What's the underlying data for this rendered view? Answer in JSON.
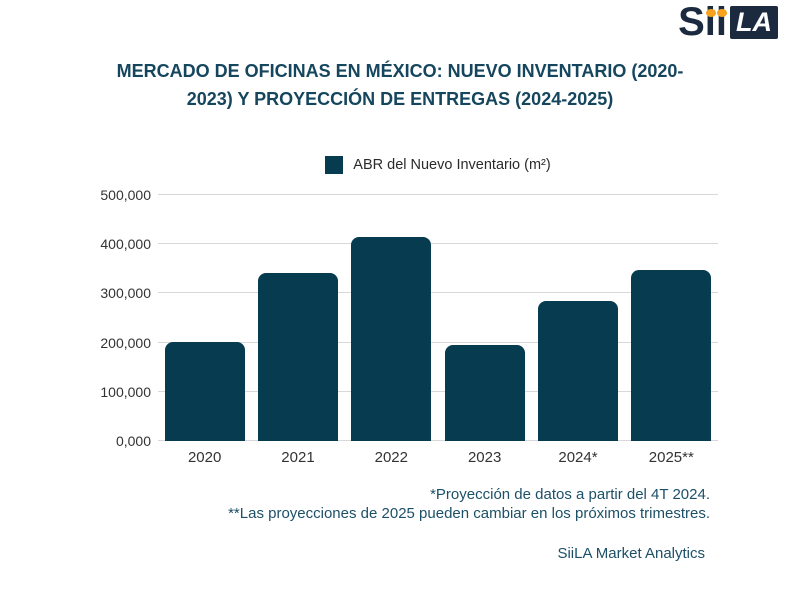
{
  "logo": {
    "brand": "SiiLA",
    "prefix": "Sii",
    "suffix": "LA",
    "navy": "#1B2A3E",
    "orange": "#F8A21D"
  },
  "title": {
    "line1": "MERCADO DE OFICINAS EN MÉXICO: NUEVO INVENTARIO (2020-",
    "line2": "2023) Y PROYECCIÓN DE ENTREGAS (2024-2025)"
  },
  "legend": {
    "label": "ABR del Nuevo Inventario (m²)"
  },
  "chart_data": {
    "type": "bar",
    "title": "MERCADO DE OFICINAS EN MÉXICO: NUEVO INVENTARIO (2020-2023) Y PROYECCIÓN DE ENTREGAS (2024-2025)",
    "categories": [
      "2020",
      "2021",
      "2022",
      "2023",
      "2024*",
      "2025**"
    ],
    "series": [
      {
        "name": "ABR del Nuevo Inventario (m²)",
        "values": [
          202000,
          342000,
          415000,
          196000,
          284000,
          347000
        ]
      }
    ],
    "xlabel": "",
    "ylabel": "",
    "ylim": [
      0,
      500000
    ],
    "y_ticks": [
      {
        "value": 0,
        "label": "0,000"
      },
      {
        "value": 100000,
        "label": "100,000"
      },
      {
        "value": 200000,
        "label": "200,000"
      },
      {
        "value": 300000,
        "label": "300,000"
      },
      {
        "value": 400000,
        "label": "400,000"
      },
      {
        "value": 500000,
        "label": "500,000"
      }
    ],
    "grid": "horizontal",
    "legend_position": "top-center",
    "bar_color": "#063B50"
  },
  "footnotes": {
    "line1": "*Proyección de datos a partir del 4T 2024.",
    "line2": "**Las proyecciones de 2025 pueden cambiar en los próximos trimestres."
  },
  "source": {
    "label": "SiiLA Market Analytics"
  },
  "colors": {
    "background": "#FFFFFF",
    "bar": "#063B50",
    "title_text": "#15465E",
    "footnote_text": "#1C5068",
    "axis_text": "#333333",
    "gridline": "#D8D8D8"
  }
}
